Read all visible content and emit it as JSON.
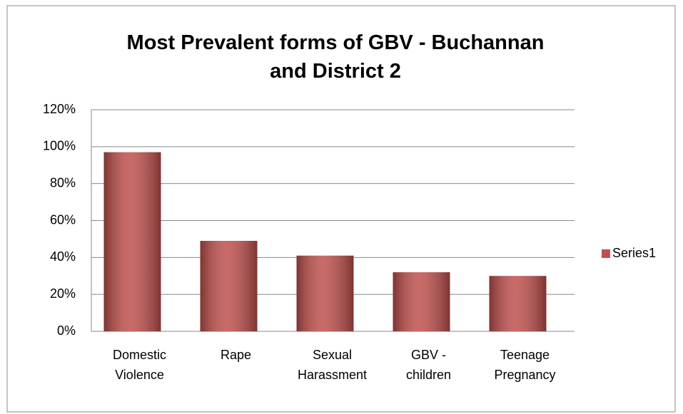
{
  "chart_data": {
    "type": "bar",
    "title": "Most Prevalent forms of GBV - Buchannan and District 2",
    "categories": [
      "Domestic Violence",
      "Rape",
      "Sexual Harassment",
      "GBV - children",
      "Teenage Pregnancy"
    ],
    "series": [
      {
        "name": "Series1",
        "color": "#c0504d",
        "values": [
          97,
          49,
          41,
          32,
          30
        ]
      }
    ],
    "ylim": [
      0,
      120
    ],
    "yticks": [
      {
        "value": 0,
        "label": "0%"
      },
      {
        "value": 20,
        "label": "20%"
      },
      {
        "value": 40,
        "label": "40%"
      },
      {
        "value": 60,
        "label": "60%"
      },
      {
        "value": 80,
        "label": "80%"
      },
      {
        "value": 100,
        "label": "100%"
      },
      {
        "value": 120,
        "label": "120%"
      }
    ],
    "grid": true,
    "legend": "right"
  }
}
